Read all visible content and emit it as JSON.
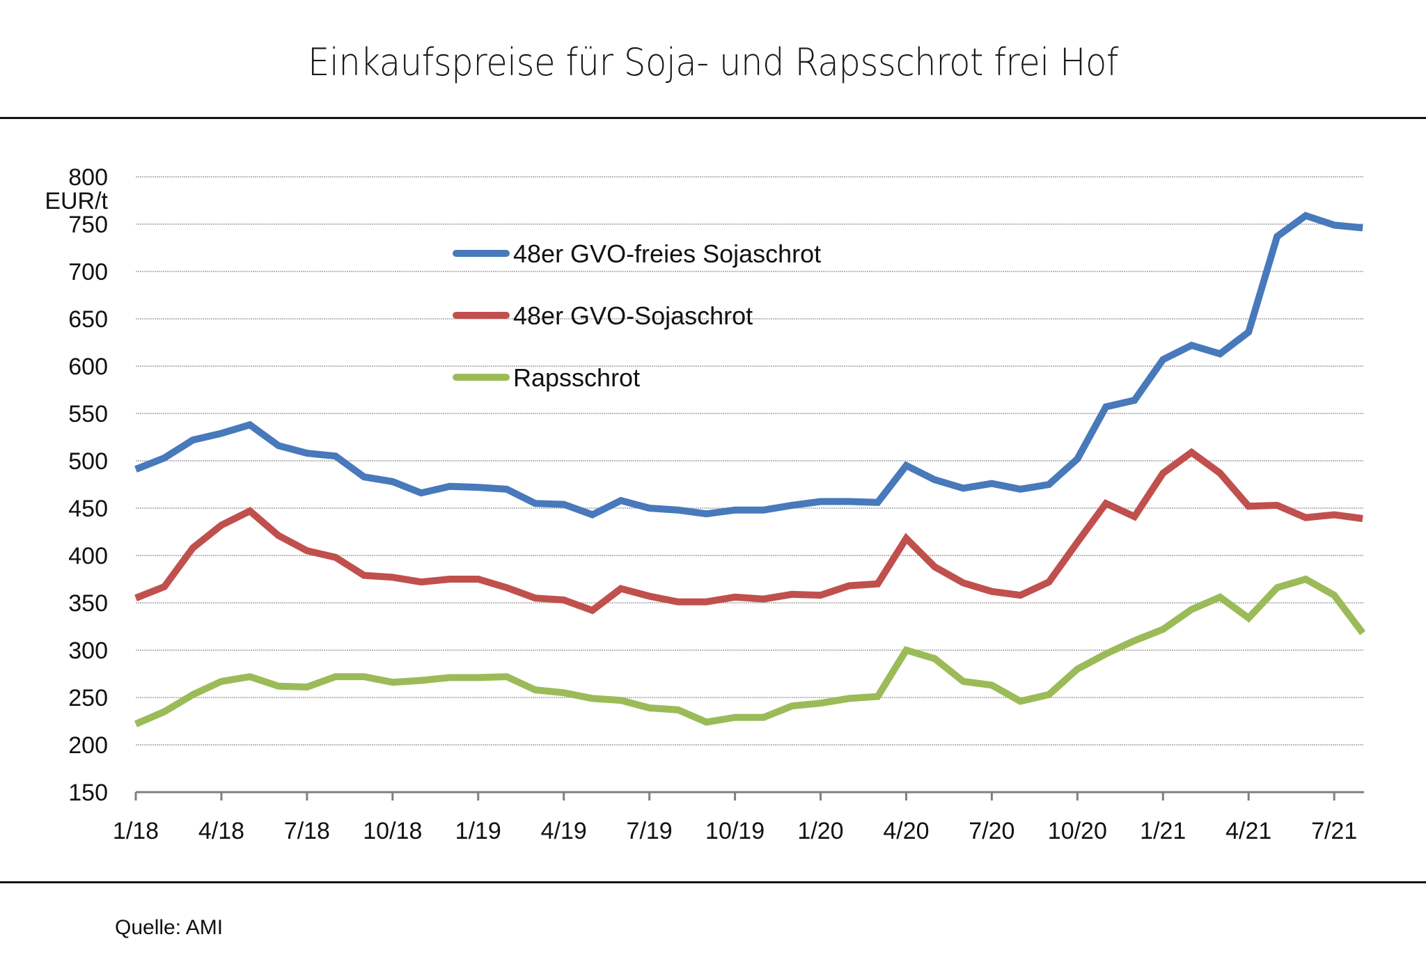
{
  "header": {
    "title": "Einkaufspreise für Soja- und Rapsschrot frei Hof"
  },
  "footer": {
    "source": "Quelle: AMI"
  },
  "chart_data": {
    "type": "line",
    "title": "Einkaufspreise für Soja- und Rapsschrot frei Hof",
    "xlabel": "",
    "ylabel": "EUR/t",
    "ylim": [
      150,
      800
    ],
    "yticks": [
      150,
      200,
      250,
      300,
      350,
      400,
      450,
      500,
      550,
      600,
      650,
      700,
      750,
      800
    ],
    "grid": true,
    "legend_position": "top-center",
    "x": [
      "1/18",
      "2/18",
      "3/18",
      "4/18",
      "5/18",
      "6/18",
      "7/18",
      "8/18",
      "9/18",
      "10/18",
      "11/18",
      "12/18",
      "1/19",
      "2/19",
      "3/19",
      "4/19",
      "5/19",
      "6/19",
      "7/19",
      "8/19",
      "9/19",
      "10/19",
      "11/19",
      "12/19",
      "1/20",
      "2/20",
      "3/20",
      "4/20",
      "5/20",
      "6/20",
      "7/20",
      "8/20",
      "9/20",
      "10/20",
      "11/20",
      "12/20",
      "1/21",
      "2/21",
      "3/21",
      "4/21",
      "5/21",
      "6/21",
      "7/21",
      "8/21"
    ],
    "xtick_labels": [
      "1/18",
      "4/18",
      "7/18",
      "10/18",
      "1/19",
      "4/19",
      "7/19",
      "10/19",
      "1/20",
      "4/20",
      "7/20",
      "10/20",
      "1/21",
      "4/21",
      "7/21"
    ],
    "series": [
      {
        "name": "48er GVO-freies Sojaschrot",
        "color": "#4779bb",
        "values": [
          491,
          503,
          522,
          529,
          538,
          516,
          508,
          505,
          483,
          478,
          466,
          473,
          472,
          470,
          455,
          454,
          443,
          458,
          450,
          448,
          444,
          448,
          448,
          453,
          457,
          457,
          456,
          495,
          480,
          471,
          476,
          470,
          475,
          502,
          557,
          564,
          607,
          622,
          613,
          636,
          737,
          759,
          749,
          746
        ]
      },
      {
        "name": "48er GVO-Sojaschrot",
        "color": "#c0504d",
        "values": [
          355,
          367,
          408,
          432,
          447,
          421,
          405,
          398,
          379,
          377,
          372,
          375,
          375,
          366,
          355,
          353,
          342,
          365,
          357,
          351,
          351,
          356,
          354,
          359,
          358,
          368,
          370,
          418,
          388,
          371,
          362,
          358,
          372,
          414,
          455,
          441,
          487,
          509,
          487,
          452,
          453,
          440,
          443,
          439
        ]
      },
      {
        "name": "Rapsschrot",
        "color": "#9bbb59",
        "values": [
          222,
          235,
          253,
          267,
          272,
          262,
          261,
          272,
          272,
          266,
          268,
          271,
          271,
          272,
          258,
          255,
          249,
          247,
          239,
          237,
          224,
          229,
          229,
          241,
          244,
          249,
          251,
          300,
          291,
          267,
          263,
          246,
          253,
          280,
          296,
          310,
          322,
          343,
          356,
          334,
          366,
          375,
          358,
          318
        ]
      }
    ]
  }
}
